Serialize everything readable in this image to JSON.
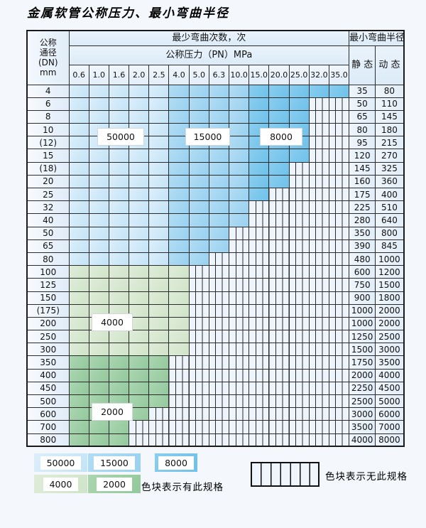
{
  "title": "金属软管公称压力、最小弯曲半径",
  "table": {
    "corner_header": [
      "公称",
      "通径",
      "(DN)",
      "mm"
    ],
    "bend_cycles_header": "最少弯曲次数，次",
    "pressure_header": "公称压力（PN）MPa",
    "pressure_columns": [
      "0.6",
      "1.0",
      "1.6",
      "2.0",
      "2.5",
      "4.0",
      "5.0",
      "6.3",
      "10.0",
      "15.0",
      "20.0",
      "25.0",
      "32.0",
      "35.0"
    ],
    "radius_header": "最小弯曲半径",
    "static_header": "静 态",
    "dynamic_header": "动 态",
    "rows": [
      {
        "dn": "4",
        "static": "35",
        "dynamic": "80",
        "zones": [
          {
            "cycles": "50000",
            "cols": 5
          },
          {
            "cycles": "15000",
            "cols": 4
          },
          {
            "cycles": "8000",
            "cols": 5
          }
        ]
      },
      {
        "dn": "6",
        "static": "50",
        "dynamic": "110",
        "zones": [
          {
            "cycles": "50000",
            "cols": 5
          },
          {
            "cycles": "15000",
            "cols": 4
          },
          {
            "cycles": "8000",
            "cols": 3
          }
        ]
      },
      {
        "dn": "8",
        "static": "65",
        "dynamic": "145",
        "zones": [
          {
            "cycles": "50000",
            "cols": 5
          },
          {
            "cycles": "15000",
            "cols": 4
          },
          {
            "cycles": "8000",
            "cols": 3
          }
        ]
      },
      {
        "dn": "10",
        "static": "80",
        "dynamic": "180",
        "zones": [
          {
            "cycles": "50000",
            "cols": 5
          },
          {
            "cycles": "15000",
            "cols": 4
          },
          {
            "cycles": "8000",
            "cols": 3
          }
        ]
      },
      {
        "dn": "(12)",
        "static": "95",
        "dynamic": "215",
        "zones": [
          {
            "cycles": "50000",
            "cols": 5
          },
          {
            "cycles": "15000",
            "cols": 4
          },
          {
            "cycles": "8000",
            "cols": 3
          }
        ]
      },
      {
        "dn": "15",
        "static": "120",
        "dynamic": "270",
        "zones": [
          {
            "cycles": "50000",
            "cols": 5
          },
          {
            "cycles": "15000",
            "cols": 4
          },
          {
            "cycles": "8000",
            "cols": 3
          }
        ]
      },
      {
        "dn": "(18)",
        "static": "145",
        "dynamic": "325",
        "zones": [
          {
            "cycles": "50000",
            "cols": 5
          },
          {
            "cycles": "15000",
            "cols": 4
          },
          {
            "cycles": "8000",
            "cols": 2
          }
        ]
      },
      {
        "dn": "20",
        "static": "160",
        "dynamic": "360",
        "zones": [
          {
            "cycles": "50000",
            "cols": 5
          },
          {
            "cycles": "15000",
            "cols": 4
          },
          {
            "cycles": "8000",
            "cols": 2
          }
        ]
      },
      {
        "dn": "25",
        "static": "175",
        "dynamic": "400",
        "zones": [
          {
            "cycles": "50000",
            "cols": 5
          },
          {
            "cycles": "15000",
            "cols": 4
          },
          {
            "cycles": "8000",
            "cols": 1
          }
        ]
      },
      {
        "dn": "32",
        "static": "225",
        "dynamic": "510",
        "zones": [
          {
            "cycles": "50000",
            "cols": 5
          },
          {
            "cycles": "15000",
            "cols": 4
          }
        ]
      },
      {
        "dn": "40",
        "static": "280",
        "dynamic": "640",
        "zones": [
          {
            "cycles": "50000",
            "cols": 5
          },
          {
            "cycles": "15000",
            "cols": 4
          }
        ]
      },
      {
        "dn": "50",
        "static": "350",
        "dynamic": "800",
        "zones": [
          {
            "cycles": "50000",
            "cols": 5
          },
          {
            "cycles": "15000",
            "cols": 3
          }
        ]
      },
      {
        "dn": "65",
        "static": "390",
        "dynamic": "845",
        "zones": [
          {
            "cycles": "50000",
            "cols": 5
          },
          {
            "cycles": "15000",
            "cols": 3
          }
        ]
      },
      {
        "dn": "80",
        "static": "480",
        "dynamic": "1000",
        "zones": [
          {
            "cycles": "50000",
            "cols": 5
          },
          {
            "cycles": "15000",
            "cols": 2
          }
        ]
      },
      {
        "dn": "100",
        "static": "600",
        "dynamic": "1200",
        "zones": [
          {
            "cycles": "4000",
            "cols": 6
          }
        ]
      },
      {
        "dn": "125",
        "static": "750",
        "dynamic": "1500",
        "zones": [
          {
            "cycles": "4000",
            "cols": 6
          }
        ]
      },
      {
        "dn": "150",
        "static": "900",
        "dynamic": "1800",
        "zones": [
          {
            "cycles": "4000",
            "cols": 6
          }
        ]
      },
      {
        "dn": "(175)",
        "static": "1000",
        "dynamic": "2000",
        "zones": [
          {
            "cycles": "4000",
            "cols": 6
          }
        ]
      },
      {
        "dn": "200",
        "static": "1000",
        "dynamic": "2000",
        "zones": [
          {
            "cycles": "4000",
            "cols": 6
          }
        ]
      },
      {
        "dn": "250",
        "static": "1250",
        "dynamic": "2500",
        "zones": [
          {
            "cycles": "4000",
            "cols": 6
          }
        ]
      },
      {
        "dn": "300",
        "static": "1500",
        "dynamic": "3000",
        "zones": [
          {
            "cycles": "4000",
            "cols": 6
          }
        ]
      },
      {
        "dn": "350",
        "static": "1750",
        "dynamic": "3500",
        "zones": [
          {
            "cycles": "2000",
            "cols": 5
          }
        ]
      },
      {
        "dn": "400",
        "static": "2000",
        "dynamic": "4000",
        "zones": [
          {
            "cycles": "2000",
            "cols": 5
          }
        ]
      },
      {
        "dn": "450",
        "static": "2250",
        "dynamic": "4500",
        "zones": [
          {
            "cycles": "2000",
            "cols": 5
          }
        ]
      },
      {
        "dn": "500",
        "static": "2500",
        "dynamic": "5000",
        "zones": [
          {
            "cycles": "2000",
            "cols": 5
          }
        ]
      },
      {
        "dn": "600",
        "static": "3000",
        "dynamic": "6000",
        "zones": [
          {
            "cycles": "2000",
            "cols": 4
          }
        ]
      },
      {
        "dn": "700",
        "static": "3500",
        "dynamic": "7000",
        "zones": [
          {
            "cycles": "2000",
            "cols": 3
          }
        ]
      },
      {
        "dn": "800",
        "static": "4000",
        "dynamic": "8000",
        "zones": [
          {
            "cycles": "2000",
            "cols": 3
          }
        ]
      }
    ],
    "total_pn_columns": 14
  },
  "zone_labels": [
    {
      "text": "50000"
    },
    {
      "text": "15000"
    },
    {
      "text": "8000"
    },
    {
      "text": "4000"
    },
    {
      "text": "2000"
    }
  ],
  "legend": {
    "items": [
      {
        "text": "50000"
      },
      {
        "text": "15000"
      },
      {
        "text": "8000"
      },
      {
        "text": "4000"
      },
      {
        "text": "2000"
      }
    ],
    "has_spec_text": "色块表示有此规格",
    "no_spec_text": "色块表示无此规格"
  },
  "colors": {
    "zone_50000": "#cfe8f8",
    "zone_15000": "#a3d6f1",
    "zone_8000": "#7cc6ec",
    "zone_4000": "#d7e8d1",
    "zone_2000": "#9ecfa6",
    "hatch_bg": "#edf4fb",
    "grid_line": "#2b2b2b"
  }
}
